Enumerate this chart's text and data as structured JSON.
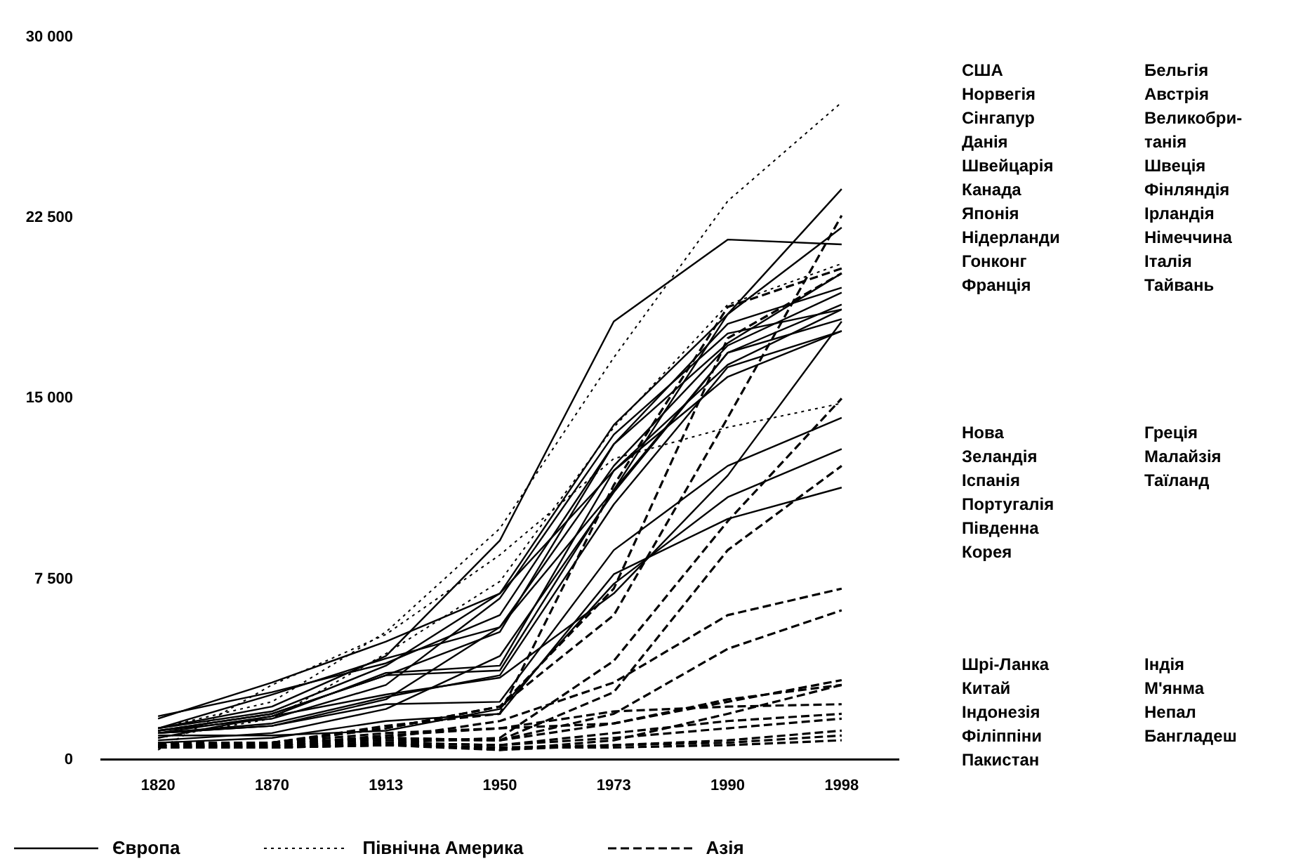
{
  "chart_data": {
    "type": "line",
    "categories": [
      "1820",
      "1870",
      "1913",
      "1950",
      "1973",
      "1990",
      "1998"
    ],
    "ylim": [
      0,
      30000
    ],
    "yticks": [
      {
        "value": 0,
        "label": "0"
      },
      {
        "value": 7500,
        "label": "7 500"
      },
      {
        "value": 15000,
        "label": "15 000"
      },
      {
        "value": 22500,
        "label": "22 500"
      },
      {
        "value": 30000,
        "label": "30 000"
      }
    ],
    "legend": "bottom",
    "marker": "none",
    "series": [
      {
        "name": "Європа",
        "color": "#000000",
        "line_style": "solid",
        "values": [
          1100,
          1400,
          2500,
          5500,
          11200,
          18500,
          23700
        ]
      },
      {
        "color": "#000000",
        "line_style": "solid",
        "values": [
          1300,
          2700,
          4200,
          5500,
          12200,
          17200,
          19400
        ]
      },
      {
        "color": "#000000",
        "line_style": "solid",
        "values": [
          1300,
          2000,
          3900,
          6900,
          13900,
          18500,
          22100
        ]
      },
      {
        "color": "#000000",
        "line_style": "solid",
        "values": [
          800,
          1100,
          2100,
          4300,
          11100,
          16900,
          18300
        ]
      },
      {
        "color": "#000000",
        "line_style": "solid",
        "values": [
          1200,
          1900,
          3500,
          5300,
          13100,
          18100,
          19600
        ]
      },
      {
        "color": "#000000",
        "line_style": "solid",
        "values": [
          1100,
          1800,
          3600,
          3900,
          12000,
          15900,
          17800
        ]
      },
      {
        "color": "#000000",
        "line_style": "solid",
        "values": [
          1100,
          1500,
          2600,
          3500,
          10600,
          16300,
          17800
        ]
      },
      {
        "color": "#000000",
        "line_style": "solid",
        "values": [
          1800,
          2800,
          4000,
          6000,
          13100,
          17300,
          20200
        ]
      },
      {
        "color": "#000000",
        "line_style": "solid",
        "values": [
          1200,
          1700,
          3100,
          6700,
          13500,
          17700,
          18700
        ]
      },
      {
        "color": "#000000",
        "line_style": "solid",
        "values": [
          1300,
          2200,
          4300,
          9100,
          18200,
          21600,
          21400
        ]
      },
      {
        "color": "#000000",
        "line_style": "solid",
        "values": [
          1700,
          3200,
          4900,
          6900,
          12000,
          16400,
          18700
        ]
      },
      {
        "color": "#000000",
        "line_style": "solid",
        "values": [
          900,
          1800,
          2700,
          3400,
          6900,
          11800,
          18200
        ]
      },
      {
        "color": "#000000",
        "line_style": "solid",
        "values": [
          1200,
          1900,
          3500,
          3700,
          11200,
          16900,
          18900
        ]
      },
      {
        "color": "#000000",
        "line_style": "solid",
        "values": [
          1100,
          1400,
          2300,
          2400,
          8700,
          12200,
          14200
        ]
      },
      {
        "color": "#000000",
        "line_style": "solid",
        "values": [
          1000,
          1000,
          1200,
          2100,
          7300,
          10900,
          12900
        ]
      },
      {
        "color": "#000000",
        "line_style": "solid",
        "values": [
          700,
          900,
          1600,
          1900,
          7700,
          10000,
          11300
        ]
      },
      {
        "name": "Північна Америка",
        "color": "#000000",
        "line_style": "dotted",
        "values": [
          1300,
          2400,
          5300,
          9600,
          16700,
          23200,
          27300
        ]
      },
      {
        "color": "#000000",
        "line_style": "dotted",
        "values": [
          900,
          1700,
          4400,
          7400,
          13800,
          18900,
          20600
        ]
      },
      {
        "color": "#000000",
        "line_style": "dotted",
        "values": [
          400,
          3100,
          5200,
          8500,
          12500,
          13800,
          14800
        ]
      },
      {
        "name": "Азія",
        "color": "#000000",
        "line_style": "dashed",
        "values": [
          500,
          700,
          1300,
          2200,
          6000,
          14200,
          22600
        ]
      },
      {
        "color": "#000000",
        "line_style": "dashed",
        "values": [
          500,
          700,
          1300,
          2200,
          7100,
          17500,
          20200
        ]
      },
      {
        "color": "#000000",
        "line_style": "dashed",
        "values": [
          700,
          700,
          1400,
          1900,
          11400,
          18800,
          20400
        ]
      },
      {
        "color": "#000000",
        "line_style": "dashed",
        "values": [
          600,
          600,
          700,
          900,
          4100,
          9900,
          15000
        ]
      },
      {
        "color": "#000000",
        "line_style": "dashed",
        "values": [
          600,
          600,
          900,
          800,
          2800,
          8700,
          12200
        ]
      },
      {
        "color": "#000000",
        "line_style": "dashed",
        "values": [
          500,
          600,
          900,
          1600,
          3200,
          6000,
          7100
        ]
      },
      {
        "color": "#000000",
        "line_style": "dashed",
        "values": [
          600,
          600,
          800,
          800,
          1900,
          4600,
          6200
        ]
      },
      {
        "color": "#000000",
        "line_style": "dashed",
        "values": [
          500,
          600,
          1000,
          1300,
          1500,
          2400,
          3300
        ]
      },
      {
        "color": "#000000",
        "line_style": "dashed",
        "values": [
          600,
          500,
          600,
          400,
          800,
          1900,
          3100
        ]
      },
      {
        "color": "#000000",
        "line_style": "dashed",
        "values": [
          600,
          700,
          900,
          800,
          1500,
          2500,
          3100
        ]
      },
      {
        "color": "#000000",
        "line_style": "dashed",
        "values": [
          600,
          700,
          1100,
          1300,
          2000,
          2200,
          2300
        ]
      },
      {
        "color": "#000000",
        "line_style": "dashed",
        "values": [
          500,
          500,
          700,
          600,
          1100,
          1600,
          1900
        ]
      },
      {
        "color": "#000000",
        "line_style": "dashed",
        "values": [
          500,
          500,
          700,
          600,
          900,
          1300,
          1700
        ]
      },
      {
        "color": "#000000",
        "line_style": "dashed",
        "values": [
          500,
          500,
          700,
          400,
          600,
          700,
          1000
        ]
      },
      {
        "color": "#000000",
        "line_style": "dashed",
        "values": [
          500,
          500,
          600,
          500,
          600,
          800,
          1200
        ]
      },
      {
        "color": "#000000",
        "line_style": "dashed",
        "values": [
          500,
          500,
          600,
          500,
          500,
          600,
          800
        ]
      }
    ],
    "annotations": [
      "США\nНорвегія\nСінгапур\nДанія\nШвейцарія\nКанада\nЯпонія\nНідерланди\nГонконг\nФранція",
      "Бельгія\nАвстрія\nВеликобри-\nтанія\nШвеція\nФінляндія\nІрландія\nНімеччина\nІталія\nТайвань",
      "Нова\nЗеландія\nІспанія\nПортугалія\nПівденна\nКорея",
      "Греція\nМалайзія\nТаїланд",
      "Шрі-Ланка\nКитай\nІндонезія\nФіліппіни\nПакистан",
      "Індія\nМ'янма\nНепал\nБангладеш"
    ]
  }
}
